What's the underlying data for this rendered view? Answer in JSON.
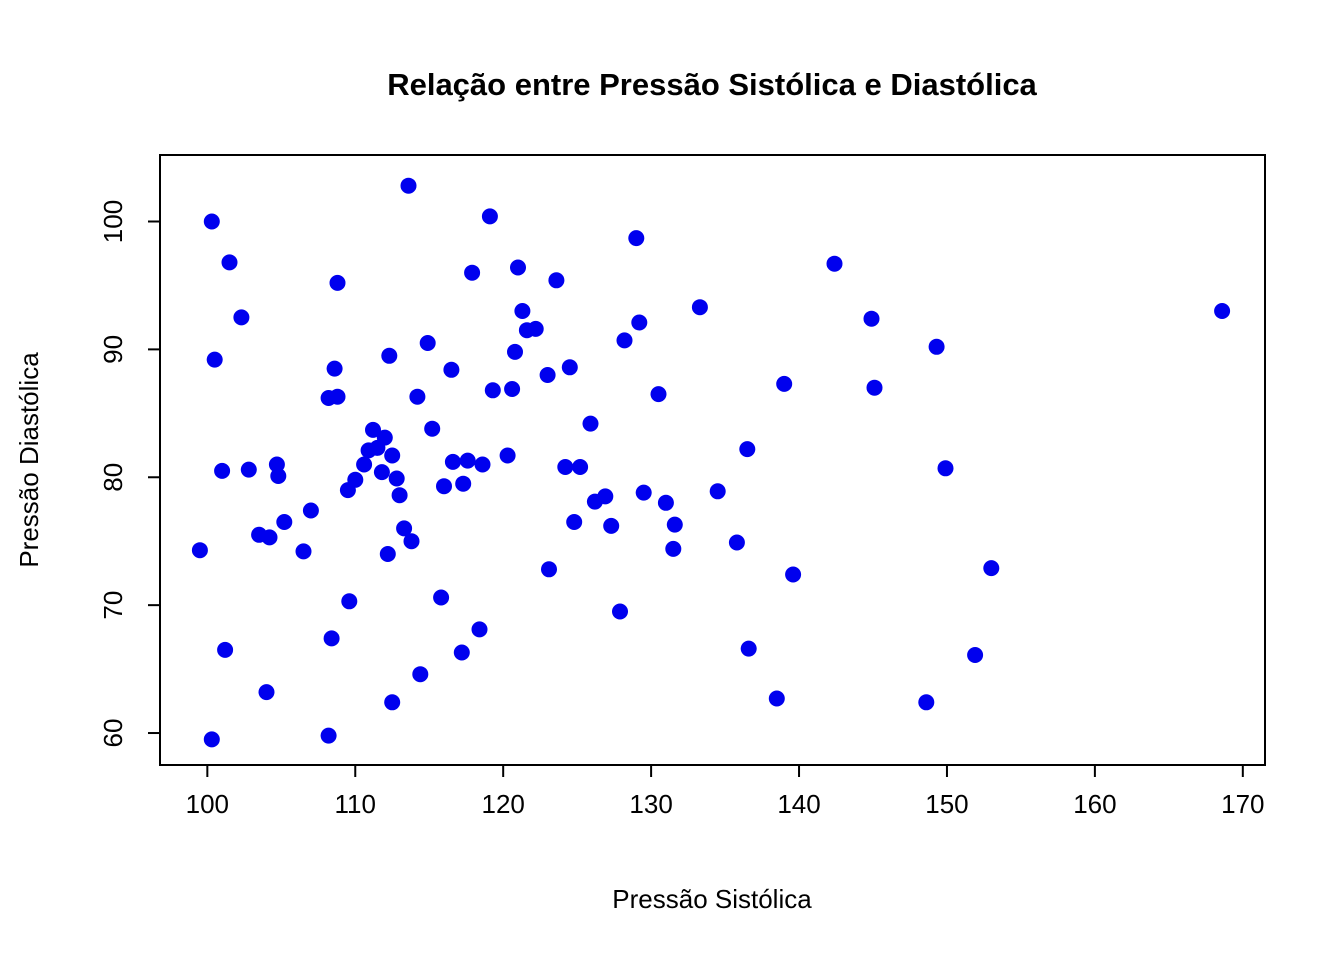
{
  "title": "Relação entre Pressão Sistólica e Diastólica",
  "chart_data": {
    "type": "scatter",
    "title": "Relação entre Pressão Sistólica e Diastólica",
    "xlabel": "Pressão Sistólica",
    "ylabel": "Pressão Diastólica",
    "x_ticks": [
      100,
      110,
      120,
      130,
      140,
      150,
      160,
      170
    ],
    "y_ticks": [
      60,
      70,
      80,
      90,
      100
    ],
    "xlim": [
      96.8,
      171.5
    ],
    "ylim": [
      57.5,
      105.2
    ],
    "grid": false,
    "legend": "none",
    "point_color": "#0000EE",
    "points": [
      [
        99.5,
        74.3
      ],
      [
        100.3,
        100.0
      ],
      [
        100.3,
        59.5
      ],
      [
        100.5,
        89.2
      ],
      [
        101.0,
        80.5
      ],
      [
        101.2,
        66.5
      ],
      [
        101.5,
        96.8
      ],
      [
        102.3,
        92.5
      ],
      [
        102.8,
        80.6
      ],
      [
        103.5,
        75.5
      ],
      [
        104.0,
        63.2
      ],
      [
        104.2,
        75.3
      ],
      [
        104.7,
        81.0
      ],
      [
        104.8,
        80.1
      ],
      [
        105.2,
        76.5
      ],
      [
        106.5,
        74.2
      ],
      [
        107.0,
        77.4
      ],
      [
        108.2,
        86.2
      ],
      [
        108.2,
        59.8
      ],
      [
        108.4,
        67.4
      ],
      [
        108.6,
        88.5
      ],
      [
        108.8,
        86.3
      ],
      [
        108.8,
        95.2
      ],
      [
        109.6,
        70.3
      ],
      [
        109.5,
        79.0
      ],
      [
        110.0,
        79.8
      ],
      [
        110.6,
        81.0
      ],
      [
        110.9,
        82.1
      ],
      [
        111.2,
        83.7
      ],
      [
        111.5,
        82.3
      ],
      [
        111.8,
        80.4
      ],
      [
        112.0,
        83.1
      ],
      [
        112.2,
        74.0
      ],
      [
        112.3,
        89.5
      ],
      [
        112.5,
        62.4
      ],
      [
        112.5,
        81.7
      ],
      [
        112.8,
        79.9
      ],
      [
        113.0,
        78.6
      ],
      [
        113.3,
        76.0
      ],
      [
        113.6,
        102.8
      ],
      [
        113.8,
        75.0
      ],
      [
        114.2,
        86.3
      ],
      [
        114.4,
        64.6
      ],
      [
        114.9,
        90.5
      ],
      [
        115.2,
        83.8
      ],
      [
        115.8,
        70.6
      ],
      [
        116.0,
        79.3
      ],
      [
        116.5,
        88.4
      ],
      [
        116.6,
        81.2
      ],
      [
        117.2,
        66.3
      ],
      [
        117.3,
        79.5
      ],
      [
        117.6,
        81.3
      ],
      [
        117.9,
        96.0
      ],
      [
        118.4,
        68.1
      ],
      [
        118.6,
        81.0
      ],
      [
        119.1,
        100.4
      ],
      [
        119.3,
        86.8
      ],
      [
        120.3,
        81.7
      ],
      [
        120.6,
        86.9
      ],
      [
        120.8,
        89.8
      ],
      [
        121.0,
        96.4
      ],
      [
        121.3,
        93.0
      ],
      [
        121.6,
        91.5
      ],
      [
        122.2,
        91.6
      ],
      [
        123.0,
        88.0
      ],
      [
        123.1,
        72.8
      ],
      [
        123.6,
        95.4
      ],
      [
        124.2,
        80.8
      ],
      [
        124.5,
        88.6
      ],
      [
        124.8,
        76.5
      ],
      [
        125.2,
        80.8
      ],
      [
        125.9,
        84.2
      ],
      [
        126.2,
        78.1
      ],
      [
        126.9,
        78.5
      ],
      [
        127.3,
        76.2
      ],
      [
        127.9,
        69.5
      ],
      [
        128.2,
        90.7
      ],
      [
        129.0,
        98.7
      ],
      [
        129.2,
        92.1
      ],
      [
        129.5,
        78.8
      ],
      [
        130.5,
        86.5
      ],
      [
        131.0,
        78.0
      ],
      [
        131.5,
        74.4
      ],
      [
        131.6,
        76.3
      ],
      [
        133.3,
        93.3
      ],
      [
        134.5,
        78.9
      ],
      [
        135.8,
        74.9
      ],
      [
        136.5,
        82.2
      ],
      [
        136.6,
        66.6
      ],
      [
        138.5,
        62.7
      ],
      [
        139.0,
        87.3
      ],
      [
        139.6,
        72.4
      ],
      [
        142.4,
        96.7
      ],
      [
        144.9,
        92.4
      ],
      [
        145.1,
        87.0
      ],
      [
        148.6,
        62.4
      ],
      [
        149.3,
        90.2
      ],
      [
        149.9,
        80.7
      ],
      [
        151.9,
        66.1
      ],
      [
        153.0,
        72.9
      ],
      [
        168.6,
        93.0
      ]
    ]
  }
}
